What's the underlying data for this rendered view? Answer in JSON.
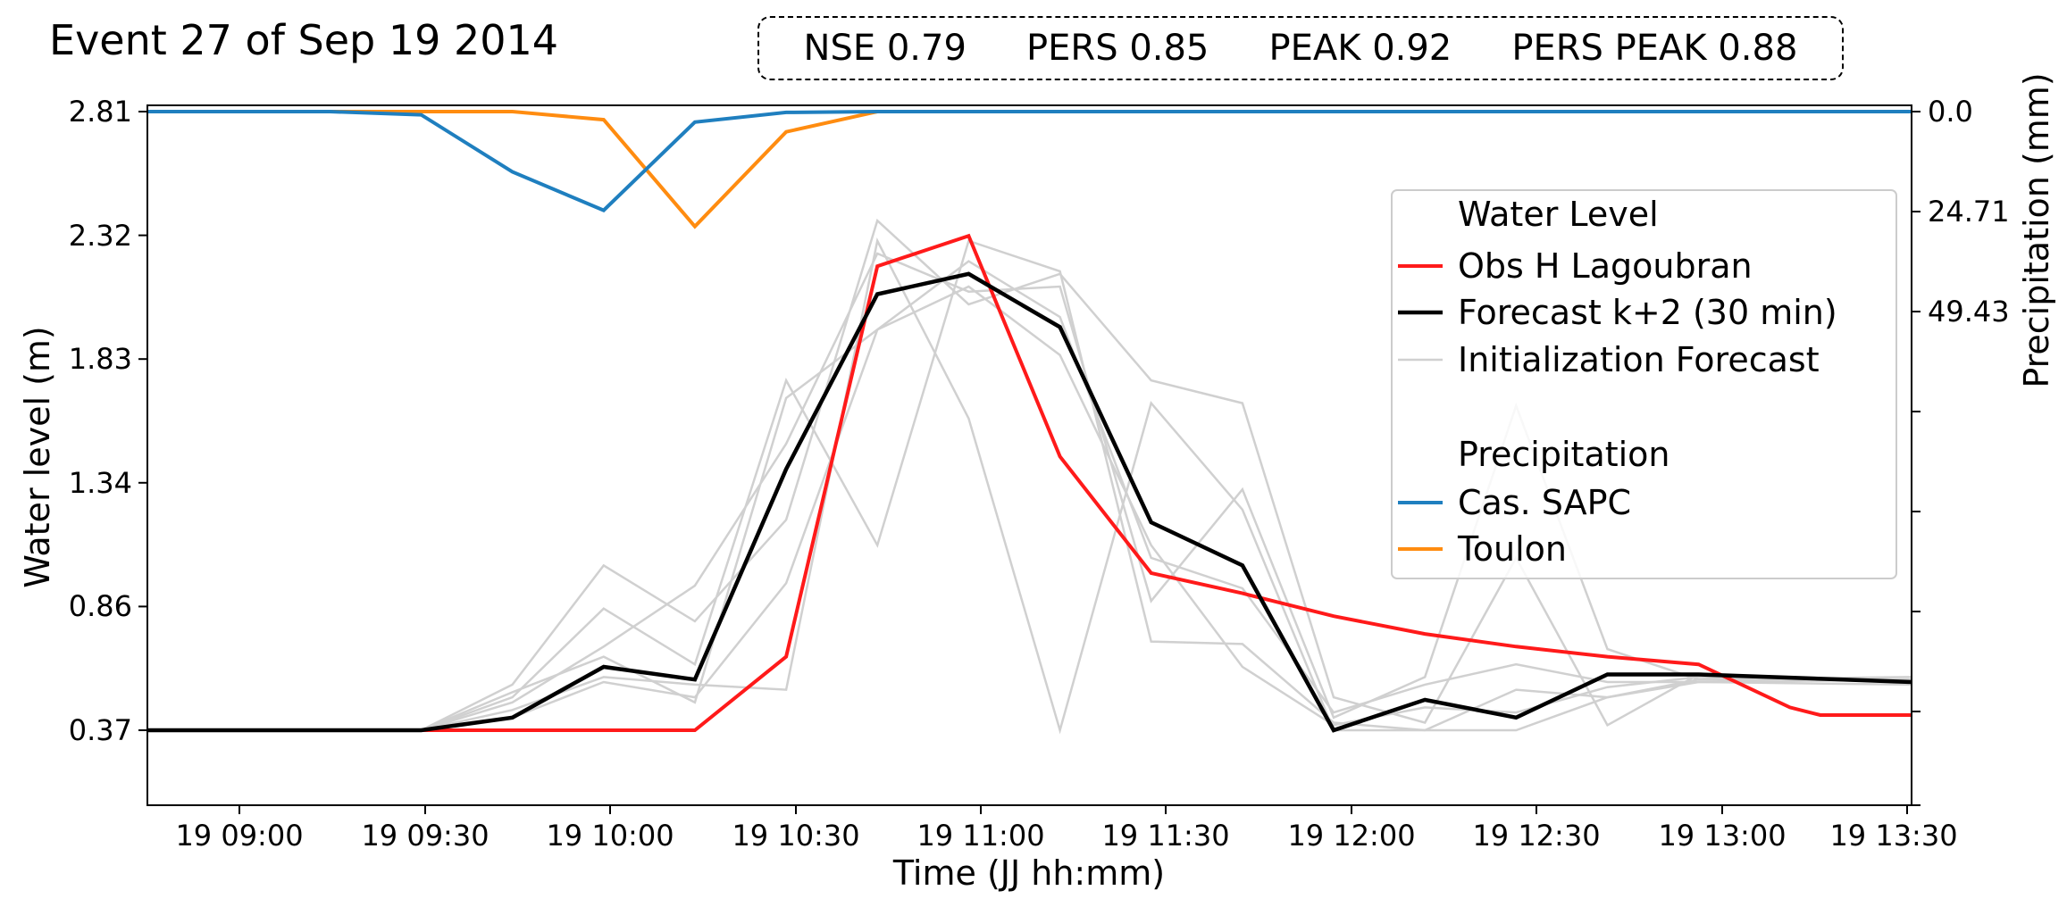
{
  "title": "Event 27 of Sep 19 2014",
  "metrics": [
    {
      "label": "NSE",
      "value": "0.79"
    },
    {
      "label": "PERS",
      "value": "0.85"
    },
    {
      "label": "PEAK",
      "value": "0.92"
    },
    {
      "label": "PERS PEAK",
      "value": "0.88"
    }
  ],
  "colors": {
    "obs": "#ff1a1a",
    "forecast": "#000000",
    "init": "#d0d0d0",
    "cas_sapc": "#1f7fbf",
    "toulon": "#ff8c10"
  },
  "chart_data": {
    "type": "line",
    "xlabel": "Time (JJ hh:mm)",
    "ylabel": "Water level (m)",
    "y2label": "Precipitation (mm)",
    "x_ticks": [
      "19 09:00",
      "19 09:30",
      "19 10:00",
      "19 10:30",
      "19 11:00",
      "19 11:30",
      "19 12:00",
      "19 12:30",
      "19 13:00",
      "19 13:30"
    ],
    "x_range_minutes": [
      525,
      815
    ],
    "y_ticks": [
      "0.37",
      "0.86",
      "1.34",
      "1.83",
      "2.32",
      "2.81"
    ],
    "y2_ticks": [
      "0.0",
      "24.71",
      "49.43"
    ],
    "legend": {
      "position": "right",
      "water_level_header": "Water Level",
      "precip_header": "Precipitation",
      "entries": [
        "Obs H Lagoubran",
        "Forecast k+2 (30 min)",
        "Initialization Forecast",
        "Cas. SAPC",
        "Toulon"
      ]
    },
    "series": [
      {
        "name": "Obs H Lagoubran",
        "axis": "left",
        "x": [
          525,
          570,
          585,
          600,
          615,
          630,
          645,
          660,
          675,
          690,
          705,
          720,
          735,
          750,
          765,
          780,
          795,
          800,
          815
        ],
        "y": [
          0.37,
          0.37,
          0.37,
          0.37,
          0.37,
          0.66,
          2.2,
          2.32,
          1.45,
          0.99,
          0.91,
          0.82,
          0.75,
          0.7,
          0.66,
          0.63,
          0.46,
          0.43,
          0.43
        ]
      },
      {
        "name": "Forecast k+2 (30 min)",
        "axis": "left",
        "x": [
          525,
          570,
          585,
          600,
          615,
          630,
          645,
          660,
          675,
          690,
          705,
          720,
          735,
          750,
          765,
          780,
          815
        ],
        "y": [
          0.37,
          0.37,
          0.42,
          0.62,
          0.57,
          1.4,
          2.09,
          2.17,
          1.96,
          1.19,
          1.02,
          0.37,
          0.49,
          0.42,
          0.59,
          0.59,
          0.56
        ]
      },
      {
        "name": "Cas. SAPC",
        "axis": "right",
        "x": [
          525,
          555,
          570,
          585,
          600,
          615,
          630,
          645,
          815
        ],
        "y": [
          0,
          0,
          0.8,
          14.9,
          24.4,
          2.6,
          0.2,
          0,
          0
        ]
      },
      {
        "name": "Toulon",
        "axis": "right",
        "x": [
          525,
          585,
          600,
          615,
          630,
          645,
          815
        ],
        "y": [
          0,
          0,
          2.0,
          28.4,
          5.0,
          0,
          0
        ]
      }
    ],
    "init_forecasts": [
      {
        "x": [
          525,
          570,
          585,
          600,
          615,
          630,
          645,
          660,
          675,
          690,
          705,
          720,
          735,
          750,
          765,
          780,
          815
        ],
        "y": [
          0.37,
          0.37,
          0.5,
          0.85,
          0.63,
          1.75,
          1.1,
          2.3,
          2.18,
          0.72,
          0.71,
          0.4,
          0.37,
          0.37,
          0.5,
          0.56,
          0.55
        ]
      },
      {
        "x": [
          525,
          570,
          585,
          600,
          615,
          630,
          645,
          660,
          675,
          690,
          705,
          720,
          735,
          750,
          765,
          780,
          815
        ],
        "y": [
          0.37,
          0.37,
          0.55,
          1.02,
          0.8,
          1.2,
          2.38,
          2.05,
          2.17,
          1.75,
          1.66,
          0.5,
          0.4,
          1.05,
          0.39,
          0.59,
          0.56
        ]
      },
      {
        "x": [
          525,
          570,
          585,
          600,
          615,
          630,
          645,
          660,
          675,
          690,
          705,
          720,
          735,
          750,
          765,
          780,
          815
        ],
        "y": [
          0.37,
          0.37,
          0.48,
          0.7,
          0.94,
          1.5,
          2.25,
          2.1,
          2.12,
          0.88,
          1.32,
          0.42,
          0.58,
          1.65,
          0.69,
          0.57,
          0.58
        ]
      },
      {
        "x": [
          525,
          570,
          585,
          600,
          615,
          630,
          645,
          660,
          675,
          690,
          705,
          720,
          735,
          750,
          765,
          780,
          815
        ],
        "y": [
          0.37,
          0.37,
          0.45,
          0.58,
          0.55,
          0.53,
          2.3,
          1.6,
          0.37,
          1.66,
          1.24,
          0.37,
          0.37,
          0.53,
          0.5,
          0.57,
          0.57
        ]
      },
      {
        "x": [
          525,
          570,
          585,
          600,
          615,
          630,
          645,
          660,
          675,
          690,
          705,
          720,
          735,
          750,
          765,
          780,
          815
        ],
        "y": [
          0.37,
          0.37,
          0.52,
          0.66,
          0.48,
          1.68,
          1.95,
          2.22,
          2.0,
          1.05,
          0.93,
          0.44,
          0.55,
          0.63,
          0.56,
          0.56,
          0.57
        ]
      },
      {
        "x": [
          525,
          570,
          585,
          600,
          615,
          630,
          645,
          660,
          675,
          690,
          705,
          720,
          735,
          750,
          765,
          780,
          815
        ],
        "y": [
          0.37,
          0.37,
          0.42,
          0.56,
          0.5,
          0.95,
          1.95,
          2.12,
          1.85,
          1.1,
          0.62,
          0.39,
          0.46,
          0.44,
          0.54,
          0.58,
          0.56
        ]
      }
    ]
  }
}
